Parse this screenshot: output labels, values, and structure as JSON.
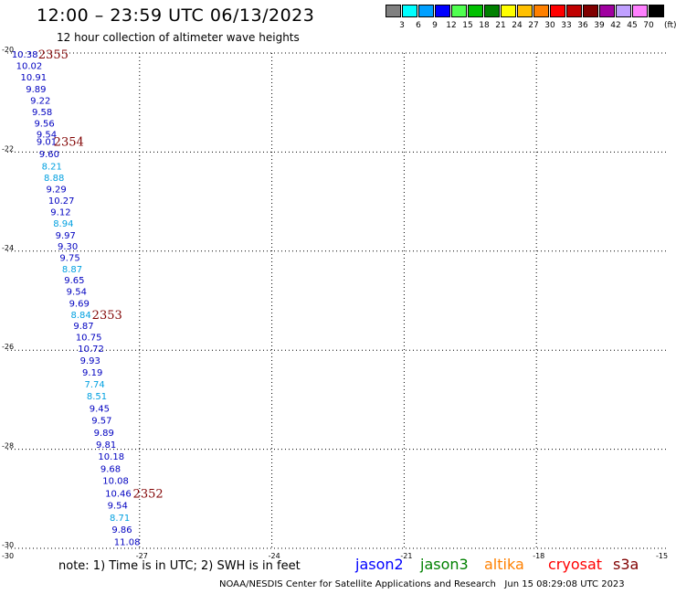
{
  "header": {
    "title": "12:00 – 23:59 UTC 06/13/2023",
    "subtitle": "12 hour collection of altimeter wave heights"
  },
  "scale": {
    "colors": [
      "#808080",
      "#00ffff",
      "#00a0ff",
      "#0000ff",
      "#50ff50",
      "#00c000",
      "#008000",
      "#ffff00",
      "#ffc000",
      "#ff8000",
      "#ff0000",
      "#c00000",
      "#800000",
      "#a000a0",
      "#c0a0ff",
      "#ff80ff",
      "#000000"
    ],
    "labels": [
      "3",
      "6",
      "9",
      "12",
      "15",
      "18",
      "21",
      "24",
      "27",
      "30",
      "33",
      "36",
      "39",
      "42",
      "45",
      "70"
    ],
    "unit": "(ft)"
  },
  "axes": {
    "lat_labels": [
      "-20",
      "-22",
      "-24",
      "-26",
      "-28",
      "-30"
    ],
    "lon_labels": [
      "-30",
      "-27",
      "-24",
      "-21",
      "-18",
      "-15"
    ]
  },
  "wave_data": [
    {
      "value": "10.38",
      "lon": -29.9,
      "lat": -20.02,
      "color": "#0000c0"
    },
    {
      "value": "10.02",
      "lon": -29.8,
      "lat": -20.25,
      "color": "#0000c0"
    },
    {
      "value": "10.91",
      "lon": -29.7,
      "lat": -20.48,
      "color": "#0000c0"
    },
    {
      "value": "9.89",
      "lon": -29.58,
      "lat": -20.72,
      "color": "#0000c0"
    },
    {
      "value": "9.22",
      "lon": -29.48,
      "lat": -20.95,
      "color": "#0000c0"
    },
    {
      "value": "9.58",
      "lon": -29.44,
      "lat": -21.18,
      "color": "#0000c0"
    },
    {
      "value": "9.56",
      "lon": -29.39,
      "lat": -21.41,
      "color": "#0000c0"
    },
    {
      "value": "9.54",
      "lon": -29.34,
      "lat": -21.63,
      "color": "#0000c0"
    },
    {
      "value": "9.01",
      "lon": -29.34,
      "lat": -21.78,
      "color": "#0000c0"
    },
    {
      "value": "9.60",
      "lon": -29.28,
      "lat": -22.03,
      "color": "#0000c0"
    },
    {
      "value": "8.21",
      "lon": -29.22,
      "lat": -22.28,
      "color": "#00a0e0"
    },
    {
      "value": "8.88",
      "lon": -29.17,
      "lat": -22.51,
      "color": "#00a0e0"
    },
    {
      "value": "9.29",
      "lon": -29.12,
      "lat": -22.74,
      "color": "#0000c0"
    },
    {
      "value": "10.27",
      "lon": -29.07,
      "lat": -22.97,
      "color": "#0000c0"
    },
    {
      "value": "9.12",
      "lon": -29.02,
      "lat": -23.2,
      "color": "#0000c0"
    },
    {
      "value": "8.94",
      "lon": -28.96,
      "lat": -23.43,
      "color": "#00a0e0"
    },
    {
      "value": "9.97",
      "lon": -28.91,
      "lat": -23.67,
      "color": "#0000c0"
    },
    {
      "value": "9.30",
      "lon": -28.86,
      "lat": -23.89,
      "color": "#0000c0"
    },
    {
      "value": "9.75",
      "lon": -28.81,
      "lat": -24.12,
      "color": "#0000c0"
    },
    {
      "value": "8.87",
      "lon": -28.76,
      "lat": -24.35,
      "color": "#00a0e0"
    },
    {
      "value": "9.65",
      "lon": -28.71,
      "lat": -24.58,
      "color": "#0000c0"
    },
    {
      "value": "9.54",
      "lon": -28.66,
      "lat": -24.81,
      "color": "#0000c0"
    },
    {
      "value": "9.69",
      "lon": -28.6,
      "lat": -25.05,
      "color": "#0000c0"
    },
    {
      "value": "8.84",
      "lon": -28.56,
      "lat": -25.28,
      "color": "#00a0e0"
    },
    {
      "value": "9.87",
      "lon": -28.5,
      "lat": -25.5,
      "color": "#0000c0"
    },
    {
      "value": "10.75",
      "lon": -28.45,
      "lat": -25.73,
      "color": "#0000c0"
    },
    {
      "value": "10.72",
      "lon": -28.4,
      "lat": -25.96,
      "color": "#0000c0"
    },
    {
      "value": "9.93",
      "lon": -28.35,
      "lat": -26.2,
      "color": "#0000c0"
    },
    {
      "value": "9.19",
      "lon": -28.3,
      "lat": -26.44,
      "color": "#0000c0"
    },
    {
      "value": "7.74",
      "lon": -28.25,
      "lat": -26.68,
      "color": "#00a0e0"
    },
    {
      "value": "8.51",
      "lon": -28.2,
      "lat": -26.92,
      "color": "#00a0e0"
    },
    {
      "value": "9.45",
      "lon": -28.14,
      "lat": -27.17,
      "color": "#0000c0"
    },
    {
      "value": "9.57",
      "lon": -28.09,
      "lat": -27.41,
      "color": "#0000c0"
    },
    {
      "value": "9.89",
      "lon": -28.04,
      "lat": -27.66,
      "color": "#0000c0"
    },
    {
      "value": "9.81",
      "lon": -27.99,
      "lat": -27.9,
      "color": "#0000c0"
    },
    {
      "value": "10.18",
      "lon": -27.94,
      "lat": -28.14,
      "color": "#0000c0"
    },
    {
      "value": "9.68",
      "lon": -27.89,
      "lat": -28.39,
      "color": "#0000c0"
    },
    {
      "value": "10.08",
      "lon": -27.84,
      "lat": -28.63,
      "color": "#0000c0"
    },
    {
      "value": "10.46",
      "lon": -27.78,
      "lat": -28.88,
      "color": "#0000c0"
    },
    {
      "value": "9.54",
      "lon": -27.73,
      "lat": -29.12,
      "color": "#0000c0"
    },
    {
      "value": "8.71",
      "lon": -27.68,
      "lat": -29.37,
      "color": "#00a0e0"
    },
    {
      "value": "9.86",
      "lon": -27.63,
      "lat": -29.61,
      "color": "#0000c0"
    },
    {
      "value": "11.08",
      "lon": -27.58,
      "lat": -29.86,
      "color": "#0000c0"
    }
  ],
  "time_labels": [
    {
      "text": "2355",
      "lon": -29.3,
      "lat": -20.02
    },
    {
      "text": "2354",
      "lon": -28.95,
      "lat": -21.78
    },
    {
      "text": "2353",
      "lon": -28.08,
      "lat": -25.28
    },
    {
      "text": "2352",
      "lon": -27.15,
      "lat": -28.88
    }
  ],
  "footer": {
    "note": "note: 1) Time is in UTC; 2) SWH is in feet",
    "satellites": [
      {
        "name": "jason2",
        "color": "#0000ff"
      },
      {
        "name": "jason3",
        "color": "#008000"
      },
      {
        "name": "altika",
        "color": "#ff8000"
      },
      {
        "name": "cryosat",
        "color": "#ff0000"
      },
      {
        "name": "s3a",
        "color": "#800000"
      }
    ],
    "credit": "NOAA/NESDIS Center for Satellite Applications and Research",
    "generated": "Jun 15 08:29:08 UTC 2023"
  }
}
